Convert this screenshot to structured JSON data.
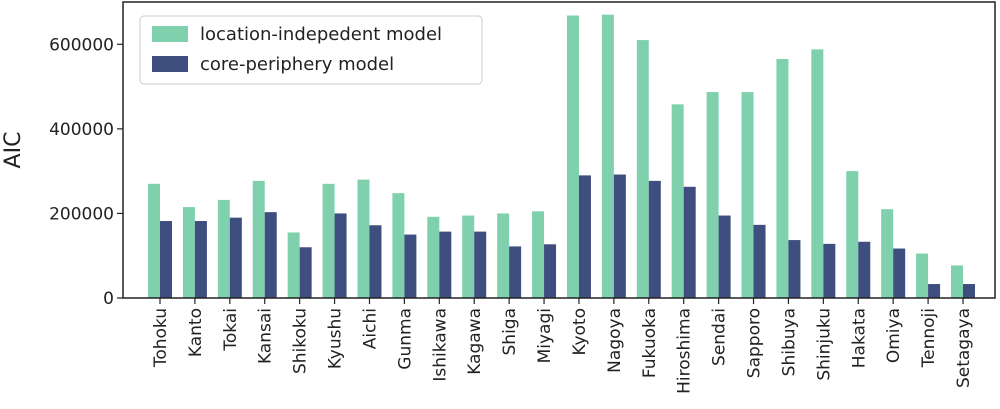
{
  "chart_data": {
    "type": "bar",
    "title": "",
    "xlabel": "",
    "ylabel": "AIC",
    "ylim": [
      0,
      700000
    ],
    "yticks": [
      0,
      200000,
      400000,
      600000
    ],
    "ytick_labels": [
      "0",
      "200000",
      "400000",
      "600000"
    ],
    "grid": false,
    "legend_position": "top-left",
    "categories": [
      "Tohoku",
      "Kanto",
      "Tokai",
      "Kansai",
      "Shikoku",
      "Kyushu",
      "Aichi",
      "Gunma",
      "Ishikawa",
      "Kagawa",
      "Shiga",
      "Miyagi",
      "Kyoto",
      "Nagoya",
      "Fukuoka",
      "Hiroshima",
      "Sendai",
      "Sapporo",
      "Shibuya",
      "Shinjuku",
      "Hakata",
      "Omiya",
      "Tennoji",
      "Setagaya"
    ],
    "series": [
      {
        "name": "location-indepedent model",
        "color": "#7fd1ae",
        "values": [
          270000,
          215000,
          232000,
          277000,
          155000,
          270000,
          280000,
          248000,
          192000,
          195000,
          200000,
          205000,
          668000,
          670000,
          610000,
          458000,
          487000,
          487000,
          565000,
          588000,
          300000,
          210000,
          105000,
          77000
        ]
      },
      {
        "name": "core-periphery model",
        "color": "#3e4e7e",
        "values": [
          182000,
          182000,
          190000,
          203000,
          120000,
          200000,
          172000,
          150000,
          157000,
          157000,
          122000,
          127000,
          290000,
          292000,
          277000,
          263000,
          195000,
          173000,
          137000,
          128000,
          133000,
          117000,
          33000,
          33000
        ]
      }
    ]
  }
}
